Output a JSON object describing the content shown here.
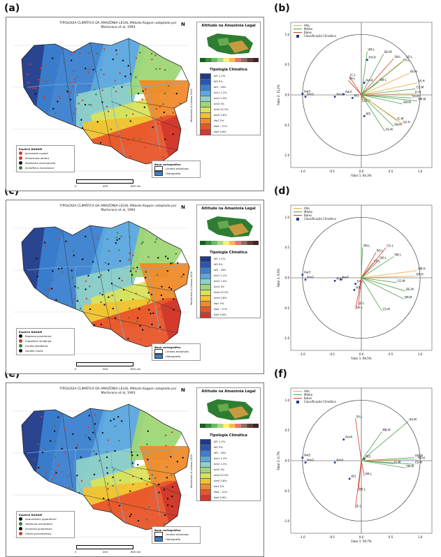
{
  "panels": {
    "a": {
      "label": "(a)"
    },
    "b": {
      "label": "(b)"
    },
    "c": {
      "label": "(c)"
    },
    "d": {
      "label": "(d)"
    },
    "e": {
      "label": "(e)"
    },
    "f": {
      "label": "(f)"
    }
  },
  "maps": [
    {
      "title": "TIPOLOGIA CLIMÁTICA DA AMAZÔNIA LEGAL Método Koppen adaptado por Martorano et al, 1993",
      "species_title": "Espécie RADAM",
      "species": [
        "Jacaranda copaia",
        "Simarouba amara",
        "Swietenia macrophylla",
        "Schefflera morototoni"
      ],
      "species_colors": [
        "#d43b2a",
        "#d43b2a",
        "#111111",
        "#3d7f3d"
      ]
    },
    {
      "title": "TIPOLOGIA CLIMÁTICA DA AMAZÔNIA LEGAL Método Koppen adaptado por Martorano et al, 1993",
      "species_title": "Espécie RADAM",
      "species": [
        "Bagassa guianensis",
        "Copaifera multijuga",
        "Cordia goeldiana",
        "Qualea rosea"
      ],
      "species_colors": [
        "#111111",
        "#d43b2a",
        "#3d7f3d",
        "#111111"
      ]
    },
    {
      "title": "TIPOLOGIA CLIMÁTICA DA AMAZÔNIA LEGAL Método Koppen adaptado por Martorano et al, 1993",
      "species_title": "Espécie RADAM",
      "species": [
        "Anacardium giganteum",
        "Tabebuia serratifolia",
        "Vochysia guianensis",
        "Virola surinamensis"
      ],
      "species_colors": [
        "#111111",
        "#3d7f3d",
        "#111111",
        "#d43b2a"
      ]
    }
  ],
  "map_common": {
    "altitude_title": "Altitude na Amazônia Legal",
    "tipologia_title": "Tipologia Climática",
    "climate_classes": [
      "Af1 1-2%",
      "Af2 9%",
      "Af3 - 16%",
      "Am1 1-2%",
      "Am2 1.5%",
      "Am3 3%",
      "Am4 22.5%",
      "Am5 5.8%",
      "Aw1 5%",
      "Aw4 - 21%",
      "Aw5 4.6%"
    ],
    "climate_colors": [
      "#1f3a8a",
      "#2a55b5",
      "#3b7fd0",
      "#5aa7df",
      "#8fd0c8",
      "#9fd676",
      "#d8e35a",
      "#f2c230",
      "#f08a2a",
      "#e8552a",
      "#d2382d"
    ],
    "base_title": "Base cartográfica",
    "base_items": [
      "Limites estaduais",
      "Hidrografia"
    ],
    "scale_labels": [
      "0",
      "400",
      "800 km"
    ],
    "credit": "Martorano & Lisboa 2020",
    "north": "N"
  },
  "pca_common": {
    "legend": [
      "Alto",
      "Médio",
      "Baixo",
      "Classificação Climática"
    ],
    "legend_colors": [
      "#f0a23a",
      "#4ea04e",
      "#d43b2a",
      "#1f3a8a"
    ],
    "axis_ticks_x": [
      "-1.0",
      "-0.5",
      "0.0",
      "0.5",
      "1.0"
    ],
    "axis_ticks_y": [
      "1.0",
      "0.5",
      "0.0",
      "-0.5",
      "-1.0"
    ]
  },
  "chart_data": [
    {
      "type": "scatter",
      "panel": "b",
      "xlabel": "Fator 1: 64,3%",
      "ylabel": "Fator 2: 15,2%",
      "xlim": [
        -1.2,
        1.2
      ],
      "ylim": [
        -1.2,
        1.2
      ],
      "points": [
        {
          "label": "Aw5",
          "x": -1.0,
          "y": 0.02
        },
        {
          "label": "Am1",
          "x": -0.95,
          "y": -0.03
        },
        {
          "label": "Am2",
          "x": -0.45,
          "y": -0.03
        },
        {
          "label": "Aw4",
          "x": -0.3,
          "y": 0.01
        },
        {
          "label": "Af1",
          "x": -0.15,
          "y": -0.05
        },
        {
          "label": "Af2",
          "x": 0.05,
          "y": -0.35
        },
        {
          "label": "Am3",
          "x": 0.1,
          "y": 0.58
        },
        {
          "label": "Am4",
          "x": 0.05,
          "y": 0.2
        }
      ],
      "vectors": [
        {
          "label": "VM-L",
          "x": 0.1,
          "y": 0.72,
          "level": "Médio"
        },
        {
          "label": "BG-M",
          "x": 0.38,
          "y": 0.68,
          "level": "Médio"
        },
        {
          "label": "SN-L",
          "x": 0.55,
          "y": 0.6,
          "level": "Baixo"
        },
        {
          "label": "VS-L",
          "x": 0.75,
          "y": 0.6,
          "level": "Alto"
        },
        {
          "label": "CG-L",
          "x": 0.7,
          "y": 0.55,
          "level": "Médio"
        },
        {
          "label": "JC-L",
          "x": -0.2,
          "y": 0.3,
          "level": "Baixo"
        },
        {
          "label": "SA-L",
          "x": -0.22,
          "y": 0.24,
          "level": "Baixo"
        },
        {
          "label": "BG-H",
          "x": 0.82,
          "y": 0.36,
          "level": "Alto"
        },
        {
          "label": "SM-L",
          "x": 0.3,
          "y": 0.22,
          "level": "Médio"
        },
        {
          "label": "DE-L",
          "x": 0.03,
          "y": -0.12,
          "level": "Baixo"
        },
        {
          "label": "VS-H",
          "x": 0.95,
          "y": 0.2,
          "level": "Alto"
        },
        {
          "label": "CG-M",
          "x": 0.92,
          "y": 0.1,
          "level": "Médio"
        },
        {
          "label": "JC-H",
          "x": 0.9,
          "y": 0.02,
          "level": "Alto"
        },
        {
          "label": "SA-M",
          "x": 0.85,
          "y": -0.05,
          "level": "Médio"
        },
        {
          "label": "SM-M",
          "x": 0.7,
          "y": -0.15,
          "level": "Médio"
        },
        {
          "label": "JC-M",
          "x": 0.6,
          "y": -0.42,
          "level": "Médio"
        },
        {
          "label": "SA-H",
          "x": 0.7,
          "y": -0.48,
          "level": "Alto"
        },
        {
          "label": "SN-M",
          "x": 0.55,
          "y": -0.52,
          "level": "Médio"
        },
        {
          "label": "VS-M",
          "x": 0.4,
          "y": -0.6,
          "level": "Médio"
        },
        {
          "label": "VM-M",
          "x": 0.95,
          "y": -0.1,
          "level": "Médio"
        }
      ]
    },
    {
      "type": "scatter",
      "panel": "d",
      "xlabel": "Fator 1: 69,5%",
      "ylabel": "Fator 2: 9,5%",
      "xlim": [
        -1.2,
        1.2
      ],
      "ylim": [
        -1.2,
        1.2
      ],
      "points": [
        {
          "label": "Aw5",
          "x": -1.0,
          "y": 0.05
        },
        {
          "label": "Am1",
          "x": -0.95,
          "y": -0.03
        },
        {
          "label": "Am2",
          "x": -0.45,
          "y": -0.05
        },
        {
          "label": "Aw4",
          "x": -0.35,
          "y": -0.03
        },
        {
          "label": "Af1",
          "x": -0.12,
          "y": -0.2
        },
        {
          "label": "SA-L",
          "x": -0.1,
          "y": -0.1
        }
      ],
      "vectors": [
        {
          "label": "VM-L",
          "x": 0.02,
          "y": 0.5,
          "level": "Médio"
        },
        {
          "label": "BG-L",
          "x": 0.25,
          "y": 0.42,
          "level": "Baixo"
        },
        {
          "label": "CG-L",
          "x": 0.42,
          "y": 0.5,
          "level": "Baixo"
        },
        {
          "label": "QR-L",
          "x": 0.3,
          "y": 0.3,
          "level": "Baixo"
        },
        {
          "label": "SM-L",
          "x": 0.55,
          "y": 0.35,
          "level": "Médio"
        },
        {
          "label": "VS-L",
          "x": 0.2,
          "y": 0.25,
          "level": "Médio"
        },
        {
          "label": "JC-L",
          "x": -0.05,
          "y": -0.45,
          "level": "Baixo"
        },
        {
          "label": "DE-L",
          "x": -0.1,
          "y": -0.52,
          "level": "Baixo"
        },
        {
          "label": "CS-M",
          "x": 0.35,
          "y": -0.55,
          "level": "Médio"
        },
        {
          "label": "VM-H",
          "x": 0.95,
          "y": 0.12,
          "level": "Alto"
        },
        {
          "label": "QR-H",
          "x": 0.92,
          "y": 0.03,
          "level": "Alto"
        },
        {
          "label": "CG-M",
          "x": 0.6,
          "y": -0.08,
          "level": "Médio"
        },
        {
          "label": "BG-M",
          "x": 0.75,
          "y": -0.22,
          "level": "Médio"
        },
        {
          "label": "SM-M",
          "x": 0.72,
          "y": -0.35,
          "level": "Médio"
        }
      ]
    },
    {
      "type": "scatter",
      "panel": "f",
      "xlabel": "Fator 1: 59,7%",
      "ylabel": "Fator 2: 6,7%",
      "xlim": [
        -1.2,
        1.2
      ],
      "ylim": [
        -1.2,
        1.2
      ],
      "points": [
        {
          "label": "Aw5",
          "x": -1.0,
          "y": 0.05
        },
        {
          "label": "Am1",
          "x": -0.95,
          "y": -0.03
        },
        {
          "label": "Am2",
          "x": -0.45,
          "y": -0.03
        },
        {
          "label": "Am4",
          "x": -0.3,
          "y": 0.35
        },
        {
          "label": "Af1",
          "x": -0.2,
          "y": -0.3
        },
        {
          "label": "Af2",
          "x": 0.05,
          "y": 0.03
        }
      ],
      "vectors": [
        {
          "label": "SA-L",
          "x": -0.1,
          "y": 0.7,
          "level": "Baixo"
        },
        {
          "label": "MB-M",
          "x": 0.35,
          "y": 0.48,
          "level": "Médio"
        },
        {
          "label": "HA-M",
          "x": 0.8,
          "y": 0.65,
          "level": "Médio"
        },
        {
          "label": "VM-L",
          "x": 0.05,
          "y": -0.25,
          "level": "Baixo"
        },
        {
          "label": "DE-L",
          "x": -0.05,
          "y": -0.5,
          "level": "Baixo"
        },
        {
          "label": "JC-L",
          "x": -0.1,
          "y": -0.78,
          "level": "Baixo"
        },
        {
          "label": "VM-M",
          "x": 0.9,
          "y": 0.05,
          "level": "Médio"
        },
        {
          "label": "HA-H",
          "x": 0.95,
          "y": 0.02,
          "level": "Alto"
        },
        {
          "label": "CS-M",
          "x": 0.9,
          "y": -0.06,
          "level": "Médio"
        },
        {
          "label": "SM-M",
          "x": 0.75,
          "y": -0.12,
          "level": "Médio"
        },
        {
          "label": "JC-M",
          "x": 0.55,
          "y": -0.05,
          "level": "Médio"
        }
      ]
    }
  ]
}
